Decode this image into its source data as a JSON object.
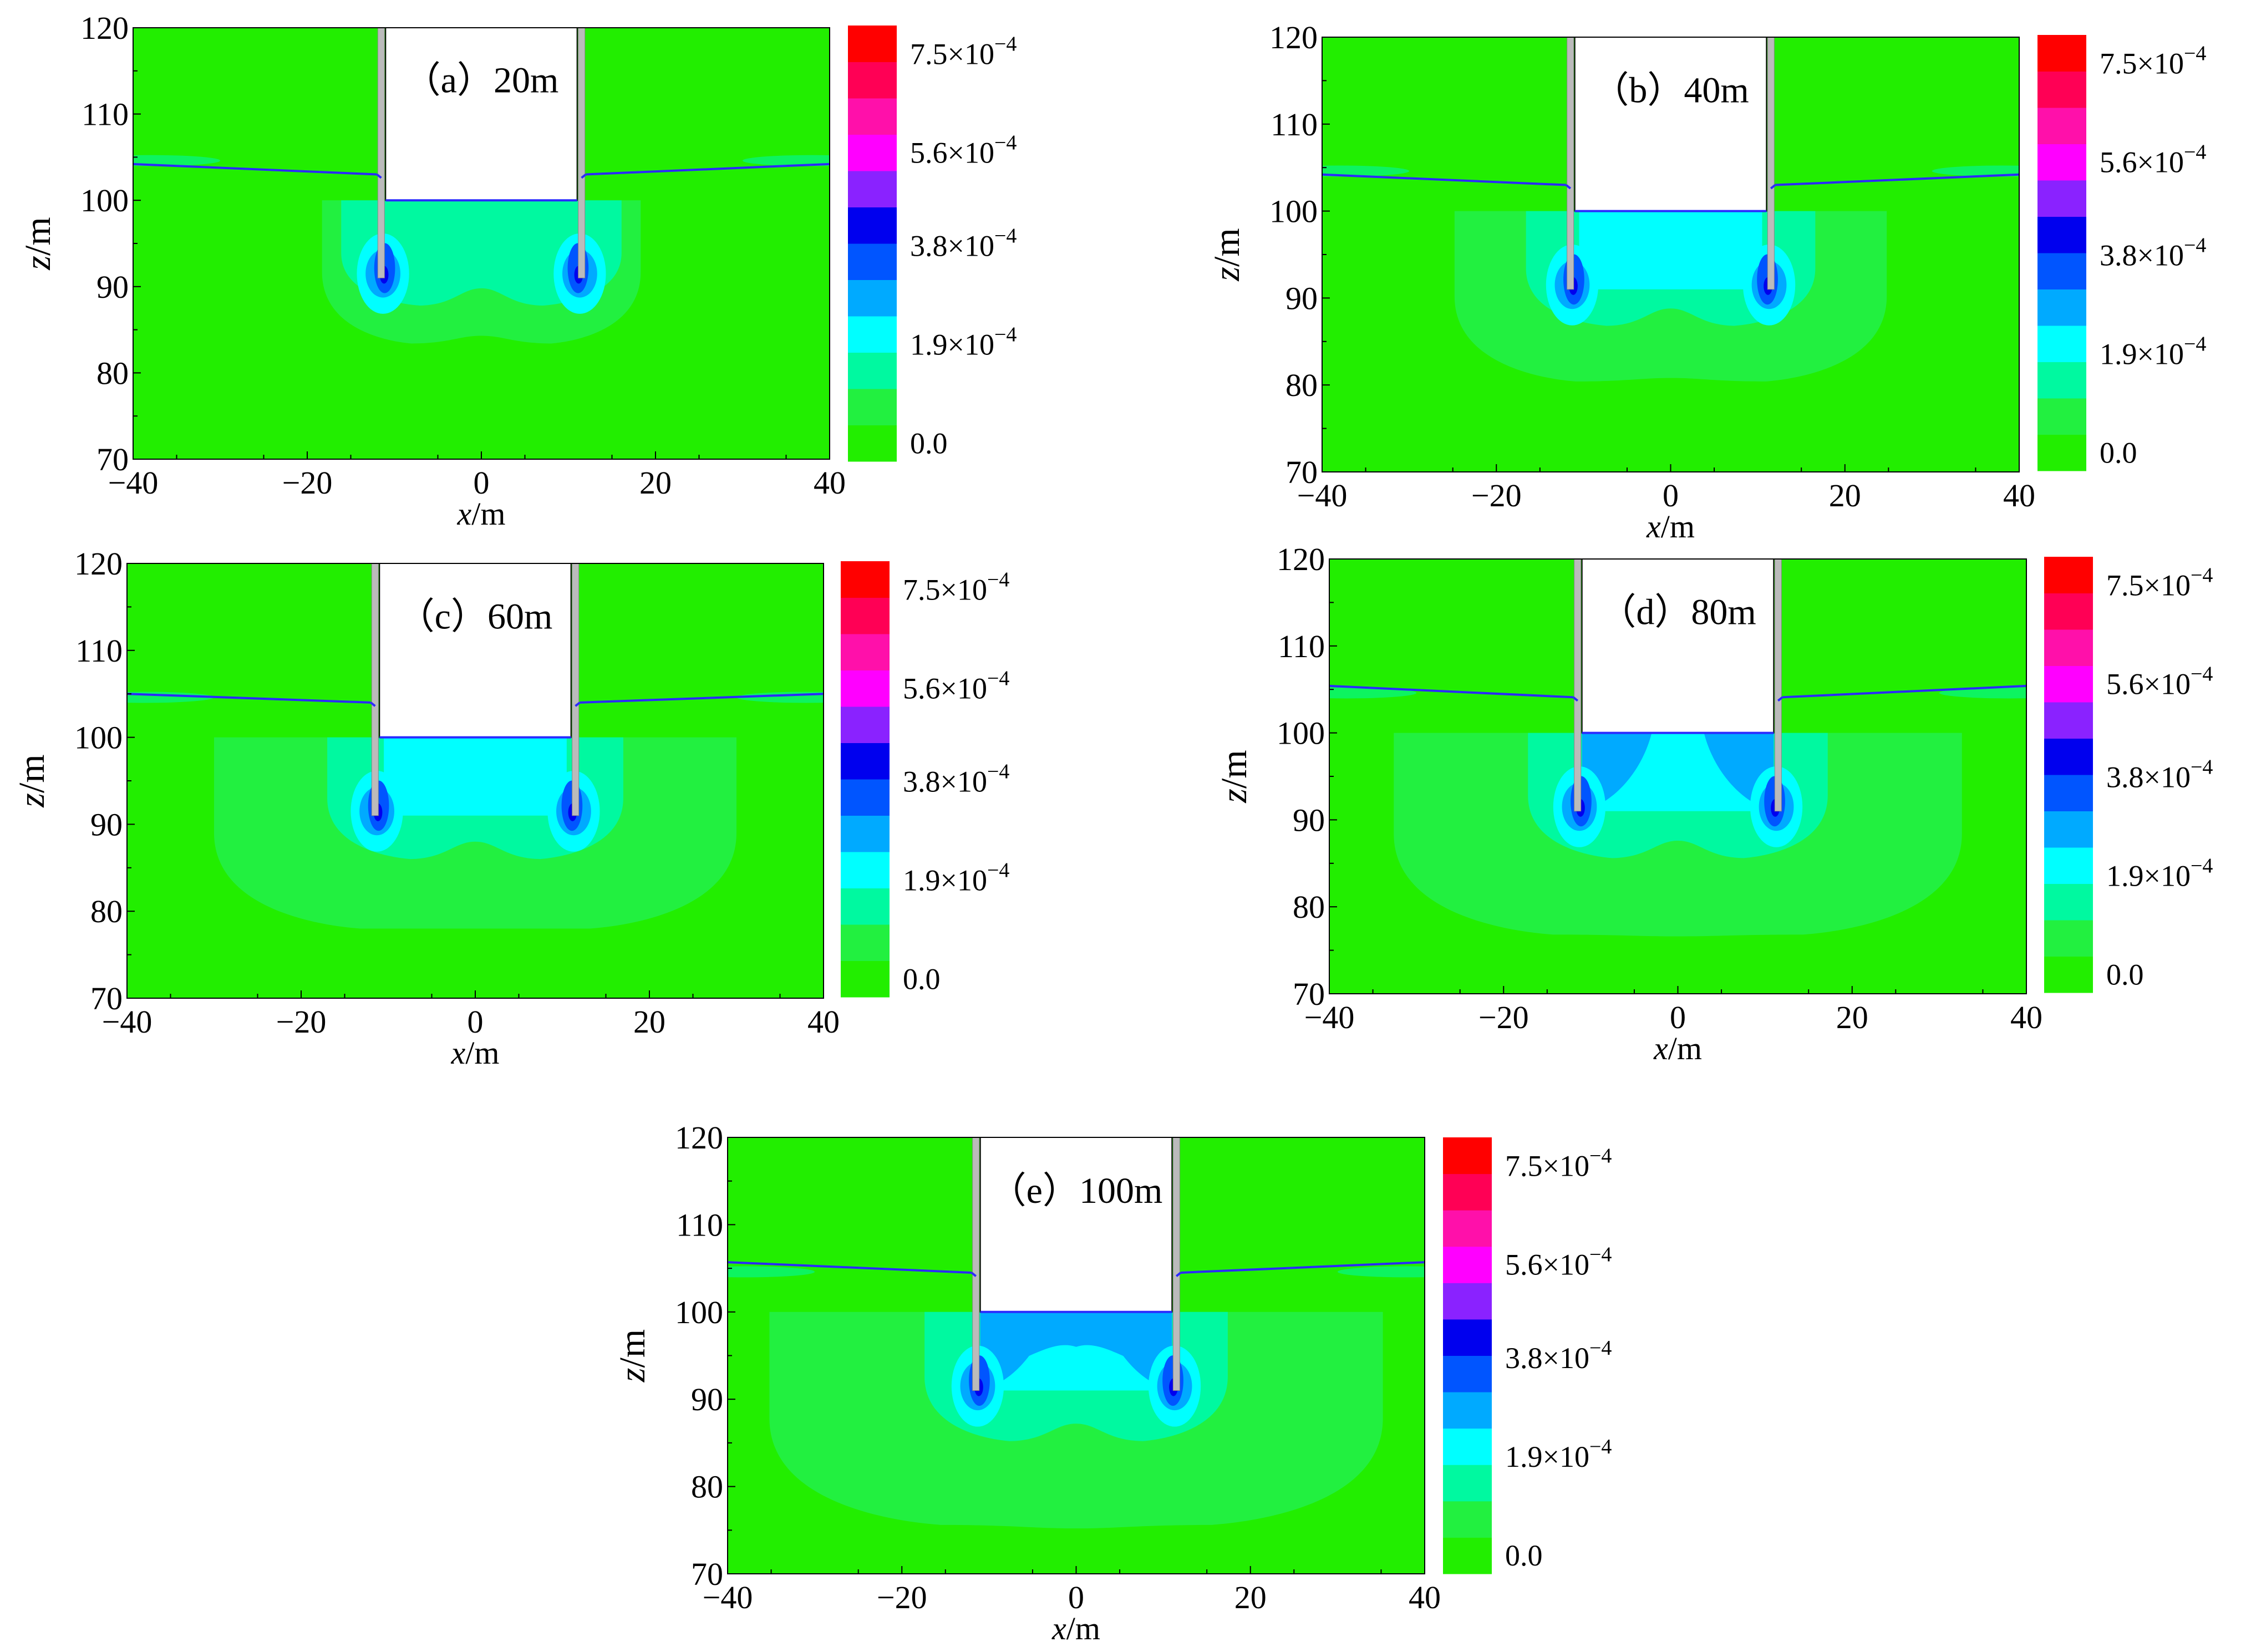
{
  "chart_data": {
    "type": "heatmap",
    "shared": {
      "xlabel_var": "x",
      "xlabel_unit": "/m",
      "ylabel_var": "z",
      "ylabel_unit": "/m",
      "xlim": [
        -40,
        40
      ],
      "ylim": [
        70,
        120
      ],
      "xticks": [
        "−40",
        "−20",
        "0",
        "20",
        "40"
      ],
      "yticks": [
        "70",
        "80",
        "90",
        "100",
        "110",
        "120"
      ],
      "colorbar": {
        "min": 0.0,
        "max": 0.00084,
        "level_colors": [
          "#22ee00",
          "#22f040",
          "#00f9a0",
          "#00ffff",
          "#00aaff",
          "#0055ff",
          "#0000ee",
          "#8a22ff",
          "#ff00ff",
          "#ff10aa",
          "#ff0055",
          "#ff0000"
        ],
        "tick_values": [
          0.0,
          0.00019,
          0.00038,
          0.00056,
          0.00075
        ],
        "tick_mantissa": [
          "0.0",
          "1.9×10",
          "3.8×10",
          "5.6×10",
          "7.5×10"
        ],
        "tick_exponent": [
          "",
          "−4",
          "−4",
          "−4",
          "−4"
        ]
      },
      "excavation": {
        "half_width_x": 11,
        "bottom_z": 100,
        "wall_toe_z": 91
      },
      "colors": {
        "background": "#22ee00",
        "water_table": "#2a2aff",
        "wall": "#bbbbbb"
      }
    },
    "panels": [
      {
        "label": "（a）20m",
        "water_level_left_z": [
          104.2,
          103.0
        ],
        "water_level_right_z": [
          103.0,
          104.2
        ],
        "max_level_index": 4
      },
      {
        "label": "（b）40m",
        "water_level_left_z": [
          104.2,
          103.0
        ],
        "water_level_right_z": [
          103.0,
          104.2
        ],
        "max_level_index": 5
      },
      {
        "label": "（c）60m",
        "water_level_left_z": [
          105.0,
          104.0
        ],
        "water_level_right_z": [
          104.0,
          105.0
        ],
        "max_level_index": 6
      },
      {
        "label": "（d）80m",
        "water_level_left_z": [
          105.4,
          104.1
        ],
        "water_level_right_z": [
          104.1,
          105.4
        ],
        "max_level_index": 6
      },
      {
        "label": "（e）100m",
        "water_level_left_z": [
          105.7,
          104.5
        ],
        "water_level_right_z": [
          104.5,
          105.7
        ],
        "max_level_index": 6
      }
    ]
  }
}
